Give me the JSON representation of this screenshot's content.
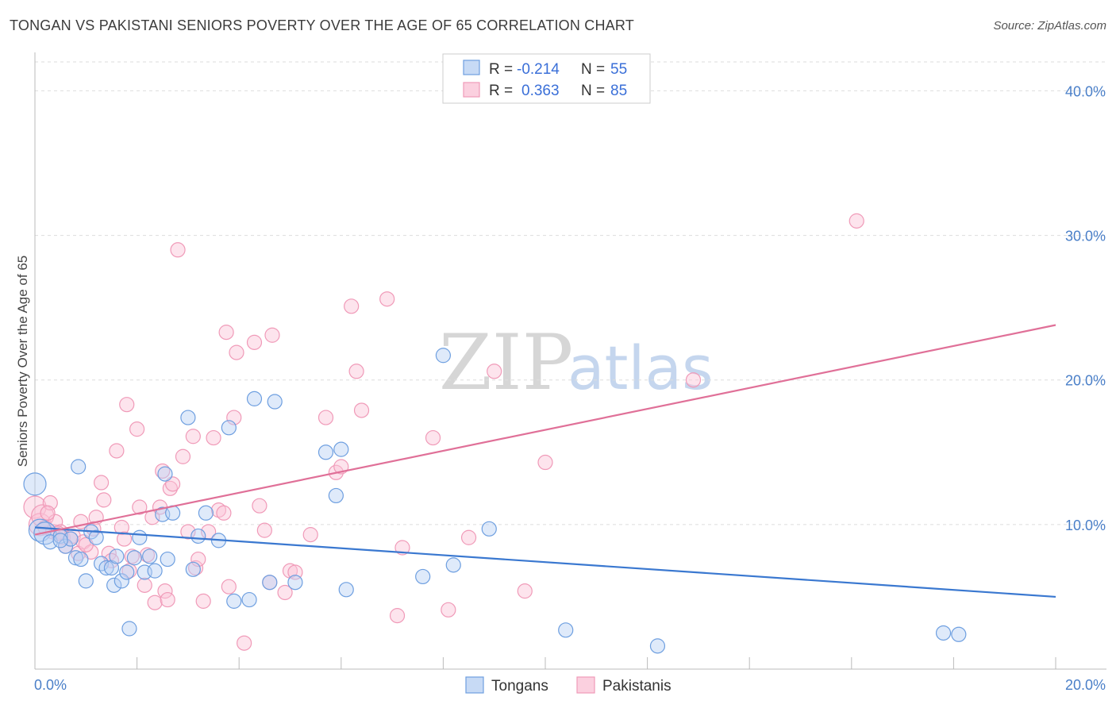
{
  "header": {
    "title": "TONGAN VS PAKISTANI SENIORS POVERTY OVER THE AGE OF 65 CORRELATION CHART",
    "source": "Source: ZipAtlas.com"
  },
  "watermark": {
    "zip": "ZIP",
    "atlas": "atlas"
  },
  "legend": {
    "r_label": "R =",
    "n_label": "N =",
    "rows": [
      {
        "r": "-0.214",
        "n": "55"
      },
      {
        "r": "0.363",
        "n": "85"
      }
    ]
  },
  "chart_data": {
    "type": "scatter",
    "title": "TONGAN VS PAKISTANI SENIORS POVERTY OVER THE AGE OF 65 CORRELATION CHART",
    "xlabel": "",
    "ylabel": "Seniors Poverty Over the Age of 65",
    "xlim": [
      0,
      20
    ],
    "ylim": [
      0,
      42
    ],
    "x_tick_labels": [
      "0.0%",
      "20.0%"
    ],
    "y_ticks": [
      10,
      20,
      30,
      40
    ],
    "y_tick_labels": [
      "10.0%",
      "20.0%",
      "30.0%",
      "40.0%"
    ],
    "grid": true,
    "legend_position": "top-center",
    "colors": {
      "tongans": "#6e9fe0",
      "pakistanis": "#f09ab8",
      "tongans_line": "#3a78d0",
      "pakistanis_line": "#e07098"
    },
    "series": [
      {
        "name": "Tongans",
        "trend": [
          [
            0,
            9.8
          ],
          [
            20,
            5.0
          ]
        ],
        "points": [
          [
            0.0,
            12.8
          ],
          [
            0.1,
            9.6
          ],
          [
            0.2,
            9.4
          ],
          [
            0.3,
            8.8
          ],
          [
            0.5,
            9.2
          ],
          [
            0.6,
            8.5
          ],
          [
            0.7,
            9.0
          ],
          [
            0.8,
            7.7
          ],
          [
            0.85,
            14.0
          ],
          [
            0.9,
            7.6
          ],
          [
            1.0,
            6.1
          ],
          [
            1.1,
            9.5
          ],
          [
            1.2,
            9.1
          ],
          [
            1.3,
            7.3
          ],
          [
            1.4,
            7.0
          ],
          [
            1.5,
            7.0
          ],
          [
            1.55,
            5.8
          ],
          [
            1.6,
            7.8
          ],
          [
            1.7,
            6.1
          ],
          [
            1.8,
            6.7
          ],
          [
            1.85,
            2.8
          ],
          [
            1.95,
            7.7
          ],
          [
            2.05,
            9.1
          ],
          [
            2.15,
            6.7
          ],
          [
            2.25,
            7.8
          ],
          [
            2.35,
            6.8
          ],
          [
            2.5,
            10.7
          ],
          [
            2.55,
            13.5
          ],
          [
            2.6,
            7.6
          ],
          [
            2.7,
            10.8
          ],
          [
            3.0,
            17.4
          ],
          [
            3.1,
            6.9
          ],
          [
            3.2,
            9.2
          ],
          [
            3.35,
            10.8
          ],
          [
            3.6,
            8.9
          ],
          [
            3.8,
            16.7
          ],
          [
            3.9,
            4.7
          ],
          [
            4.2,
            4.8
          ],
          [
            4.3,
            18.7
          ],
          [
            4.6,
            6.0
          ],
          [
            4.7,
            18.5
          ],
          [
            5.1,
            6.0
          ],
          [
            5.7,
            15.0
          ],
          [
            5.9,
            12.0
          ],
          [
            6.0,
            15.2
          ],
          [
            6.1,
            5.5
          ],
          [
            7.6,
            6.4
          ],
          [
            8.0,
            21.7
          ],
          [
            8.2,
            7.2
          ],
          [
            8.9,
            9.7
          ],
          [
            10.4,
            2.7
          ],
          [
            12.2,
            1.6
          ],
          [
            17.8,
            2.5
          ],
          [
            18.1,
            2.4
          ],
          [
            0.5,
            8.9
          ]
        ]
      },
      {
        "name": "Pakistanis",
        "trend": [
          [
            0,
            9.3
          ],
          [
            20,
            23.8
          ]
        ],
        "points": [
          [
            0.0,
            11.2
          ],
          [
            0.1,
            10.0
          ],
          [
            0.15,
            10.6
          ],
          [
            0.2,
            9.8
          ],
          [
            0.3,
            11.5
          ],
          [
            0.35,
            9.5
          ],
          [
            0.4,
            10.2
          ],
          [
            0.5,
            9.5
          ],
          [
            0.55,
            9.1
          ],
          [
            0.6,
            8.5
          ],
          [
            0.7,
            9.0
          ],
          [
            0.75,
            9.2
          ],
          [
            0.85,
            8.0
          ],
          [
            0.9,
            10.2
          ],
          [
            0.95,
            8.8
          ],
          [
            1.1,
            8.1
          ],
          [
            1.2,
            10.5
          ],
          [
            1.3,
            12.9
          ],
          [
            1.35,
            11.7
          ],
          [
            1.45,
            8.0
          ],
          [
            1.5,
            7.5
          ],
          [
            1.6,
            15.1
          ],
          [
            1.7,
            9.8
          ],
          [
            1.75,
            9.0
          ],
          [
            1.8,
            18.3
          ],
          [
            1.85,
            6.8
          ],
          [
            1.9,
            7.8
          ],
          [
            2.0,
            16.6
          ],
          [
            2.05,
            11.2
          ],
          [
            2.15,
            5.8
          ],
          [
            2.2,
            7.9
          ],
          [
            2.3,
            10.5
          ],
          [
            2.35,
            4.6
          ],
          [
            2.45,
            11.2
          ],
          [
            2.5,
            13.7
          ],
          [
            2.55,
            5.4
          ],
          [
            2.6,
            4.8
          ],
          [
            2.65,
            12.5
          ],
          [
            2.7,
            12.8
          ],
          [
            2.8,
            29.0
          ],
          [
            2.9,
            14.7
          ],
          [
            3.0,
            9.5
          ],
          [
            3.1,
            16.1
          ],
          [
            3.15,
            7.0
          ],
          [
            3.2,
            7.6
          ],
          [
            3.3,
            4.7
          ],
          [
            3.4,
            9.5
          ],
          [
            3.5,
            16.0
          ],
          [
            3.6,
            11.0
          ],
          [
            3.7,
            10.8
          ],
          [
            3.75,
            23.3
          ],
          [
            3.8,
            5.7
          ],
          [
            3.9,
            17.4
          ],
          [
            3.95,
            21.9
          ],
          [
            4.1,
            1.8
          ],
          [
            4.3,
            22.6
          ],
          [
            4.4,
            11.3
          ],
          [
            4.5,
            9.6
          ],
          [
            4.6,
            6.0
          ],
          [
            4.65,
            23.1
          ],
          [
            4.9,
            5.3
          ],
          [
            5.0,
            6.8
          ],
          [
            5.1,
            6.7
          ],
          [
            5.4,
            9.3
          ],
          [
            5.7,
            17.4
          ],
          [
            5.9,
            13.6
          ],
          [
            6.0,
            14.0
          ],
          [
            6.2,
            25.1
          ],
          [
            6.3,
            20.6
          ],
          [
            6.4,
            17.9
          ],
          [
            6.9,
            25.6
          ],
          [
            7.1,
            3.7
          ],
          [
            7.2,
            8.4
          ],
          [
            7.8,
            16.0
          ],
          [
            8.1,
            4.1
          ],
          [
            8.5,
            9.1
          ],
          [
            9.0,
            20.6
          ],
          [
            9.6,
            5.4
          ],
          [
            10.0,
            14.3
          ],
          [
            12.9,
            20.0
          ],
          [
            16.1,
            31.0
          ],
          [
            0.25,
            10.8
          ],
          [
            0.45,
            9.4
          ],
          [
            1.0,
            8.6
          ],
          [
            1.15,
            9.7
          ]
        ]
      }
    ]
  },
  "bottom_legend": [
    {
      "label": "Tongans"
    },
    {
      "label": "Pakistanis"
    }
  ]
}
